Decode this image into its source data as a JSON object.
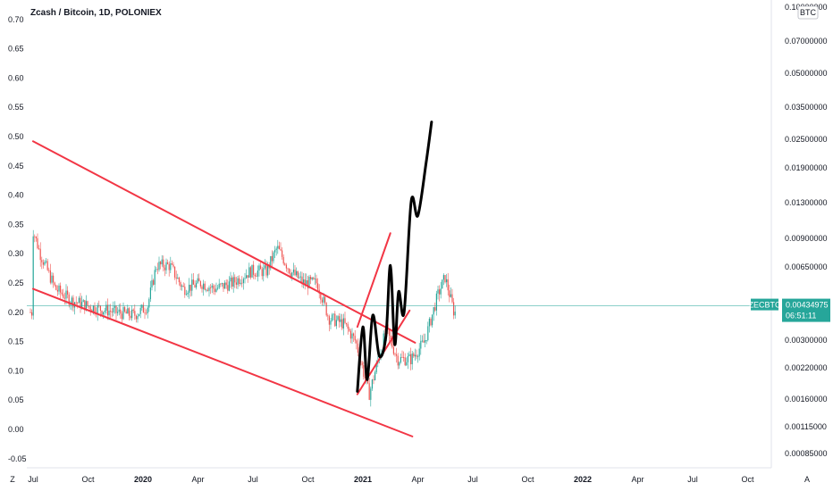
{
  "chart_data": {
    "type": "candlestick",
    "title": "Zcash / Bitcoin, 1D, POLONIEX",
    "left_axis": {
      "ticks": [
        "0.70",
        "0.65",
        "0.60",
        "0.55",
        "0.50",
        "0.45",
        "0.40",
        "0.35",
        "0.30",
        "0.25",
        "0.20",
        "0.15",
        "0.10",
        "0.05",
        "0.00",
        "-0.05"
      ],
      "values": [
        0.7,
        0.65,
        0.6,
        0.55,
        0.5,
        0.45,
        0.4,
        0.35,
        0.3,
        0.25,
        0.2,
        0.15,
        0.1,
        0.05,
        0.0,
        -0.05
      ],
      "range": [
        -0.05,
        0.7
      ],
      "corner_label": "Z"
    },
    "right_axis": {
      "unit_label": "BTC",
      "ticks": [
        "0.10000000",
        "0.07000000",
        "0.05000000",
        "0.03500000",
        "0.02500000",
        "0.01900000",
        "0.01300000",
        "0.00900000",
        "0.00650000",
        "0.00300000",
        "0.00220000",
        "0.00160000",
        "0.00115000",
        "0.00085000"
      ]
    },
    "x_axis": {
      "ticks": [
        "Jul",
        "Oct",
        "2020",
        "Apr",
        "Jul",
        "Oct",
        "2021",
        "Apr",
        "Jul",
        "Oct",
        "2022",
        "Apr",
        "Jul",
        "Oct"
      ],
      "bold": [
        "2020",
        "2021",
        "2022"
      ],
      "corner_label": "A"
    },
    "price_tag": {
      "symbol": "ZECBTC",
      "value": "0.00434975",
      "countdown": "06:51:11",
      "level": 0.211
    },
    "colors": {
      "up": "#26a69a",
      "down": "#ef5350",
      "trendline": "#f23645",
      "projection": "#000000",
      "price_line": "#26a69a",
      "grid": "#ffffff"
    },
    "annotations": [
      {
        "type": "trendline",
        "name": "upper-channel",
        "points": [
          [
            0.0,
            0.492
          ],
          [
            6.95,
            0.148
          ]
        ]
      },
      {
        "type": "trendline",
        "name": "lower-channel",
        "points": [
          [
            0.0,
            0.24
          ],
          [
            6.9,
            -0.012
          ]
        ]
      },
      {
        "type": "trendline",
        "name": "flag-upper",
        "points": [
          [
            5.9,
            0.175
          ],
          [
            6.5,
            0.335
          ]
        ]
      },
      {
        "type": "trendline",
        "name": "flag-lower",
        "points": [
          [
            5.9,
            0.06
          ],
          [
            6.85,
            0.203
          ]
        ]
      },
      {
        "type": "path",
        "name": "projected-path",
        "points": [
          [
            5.9,
            0.065
          ],
          [
            6.0,
            0.175
          ],
          [
            6.08,
            0.085
          ],
          [
            6.18,
            0.195
          ],
          [
            6.3,
            0.125
          ],
          [
            6.42,
            0.16
          ],
          [
            6.5,
            0.28
          ],
          [
            6.58,
            0.145
          ],
          [
            6.65,
            0.235
          ],
          [
            6.75,
            0.2
          ],
          [
            6.88,
            0.39
          ],
          [
            7.0,
            0.365
          ],
          [
            7.15,
            0.455
          ],
          [
            7.25,
            0.525
          ]
        ]
      }
    ]
  }
}
